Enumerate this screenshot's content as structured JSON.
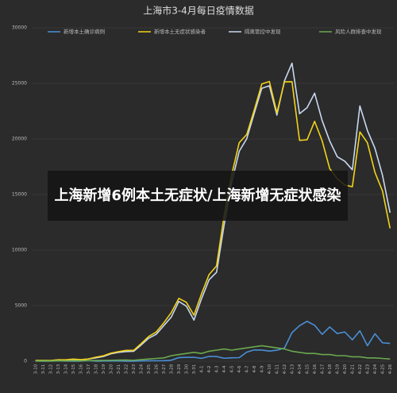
{
  "chart_data": {
    "type": "line",
    "title": "上海市3-4月每日疫情数据",
    "categories": [
      "3-10",
      "3-11",
      "3-12",
      "3-13",
      "3-14",
      "3-15",
      "3-16",
      "3-17",
      "3-18",
      "3-19",
      "3-20",
      "3-21",
      "3-22",
      "3-23",
      "3-24",
      "3-25",
      "3-26",
      "3-27",
      "3-28",
      "3-29",
      "3-30",
      "3-31",
      "4-1",
      "4-2",
      "4-3",
      "4-4",
      "4-5",
      "4-6",
      "4-7",
      "4-8",
      "4-9",
      "4-10",
      "4-11",
      "4-12",
      "4-13",
      "4-14",
      "4-15",
      "4-16",
      "4-17",
      "4-18",
      "4-19",
      "4-20",
      "4-21",
      "4-22",
      "4-23",
      "4-24",
      "4-25",
      "4-26"
    ],
    "series": [
      {
        "name": "新增本土确诊病例",
        "color": "#4a8fd6",
        "values": [
          11,
          5,
          1,
          41,
          9,
          5,
          8,
          57,
          8,
          17,
          24,
          31,
          4,
          4,
          29,
          38,
          45,
          50,
          96,
          326,
          355,
          358,
          260,
          438,
          425,
          268,
          311,
          322,
          824,
          1015,
          1006,
          914,
          994,
          1189,
          2573,
          3200,
          3590,
          3238,
          2417,
          3084,
          2494,
          2634,
          1931,
          2736,
          1401,
          2472,
          1661,
          1606
        ]
      },
      {
        "name": "新增本土无症状感染者",
        "color": "#f2d31a",
        "values": [
          64,
          78,
          64,
          128,
          130,
          197,
          150,
          203,
          366,
          492,
          734,
          865,
          977,
          979,
          1580,
          2231,
          2631,
          3450,
          4381,
          5656,
          5298,
          4144,
          6051,
          7788,
          8581,
          13086,
          16766,
          19660,
          20398,
          22609,
          24944,
          25173,
          22348,
          25141,
          25146,
          19872,
          19923,
          21582,
          19831,
          17332,
          16407,
          15861,
          15698,
          20634,
          19657,
          16983,
          15319,
          11956
        ]
      },
      {
        "name": "隔离管控中发现",
        "color": "#c8d8f0",
        "values": [
          55,
          53,
          40,
          129,
          104,
          152,
          118,
          200,
          304,
          429,
          668,
          796,
          871,
          893,
          1459,
          2069,
          2426,
          3200,
          3977,
          5382,
          4953,
          3702,
          5611,
          7326,
          8006,
          12254,
          16077,
          18882,
          20022,
          22324,
          24550,
          24787,
          22142,
          25230,
          26819,
          22272,
          22813,
          24120,
          21648,
          19816,
          18401,
          17995,
          17229,
          22970,
          20758,
          19155,
          16730,
          13362
        ]
      },
      {
        "name": "风险人群排查中发现",
        "color": "#6aa84f",
        "values": [
          20,
          30,
          25,
          40,
          35,
          50,
          40,
          60,
          70,
          80,
          90,
          100,
          110,
          90,
          150,
          200,
          250,
          300,
          500,
          600,
          700,
          800,
          700,
          900,
          1000,
          1100,
          1000,
          1100,
          1200,
          1300,
          1400,
          1300,
          1200,
          1100,
          900,
          800,
          700,
          700,
          600,
          600,
          500,
          500,
          400,
          400,
          300,
          300,
          250,
          200
        ]
      }
    ],
    "ylim": [
      0,
      30000
    ],
    "yticks": [
      0,
      5000,
      10000,
      15000,
      20000,
      25000,
      30000
    ],
    "grid": true
  },
  "banner": "上海新增6例本土无症状/上海新增无症状感染"
}
